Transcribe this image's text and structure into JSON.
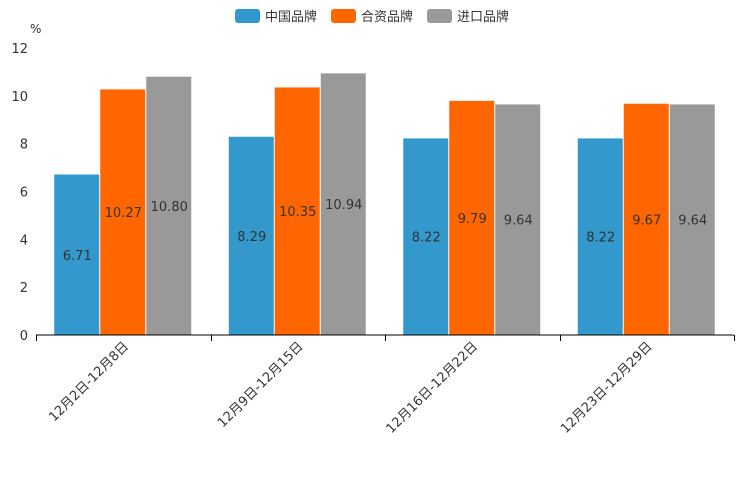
{
  "chart_data": {
    "type": "bar",
    "unit": "%",
    "categories": [
      "12月2日-12月8日",
      "12月9日-12月15日",
      "12月16日-12月22日",
      "12月23日-12月29日"
    ],
    "series": [
      {
        "name": "中国品牌",
        "color": "#3399cc",
        "values": [
          6.71,
          8.29,
          8.22,
          8.22
        ],
        "labels": [
          "6.71",
          "8.29",
          "8.22",
          "8.22"
        ]
      },
      {
        "name": "合资品牌",
        "color": "#ff6600",
        "values": [
          10.27,
          10.35,
          9.79,
          9.67
        ],
        "labels": [
          "10.27",
          "10.35",
          "9.79",
          "9.67"
        ]
      },
      {
        "name": "进口品牌",
        "color": "#999999",
        "values": [
          10.8,
          10.94,
          9.64,
          9.64
        ],
        "labels": [
          "10.80",
          "10.94",
          "9.64",
          "9.64"
        ]
      }
    ],
    "yticks": [
      "0",
      "2",
      "4",
      "6",
      "8",
      "10",
      "12"
    ],
    "ylim": [
      0,
      12
    ],
    "legend_position": "top-center"
  }
}
